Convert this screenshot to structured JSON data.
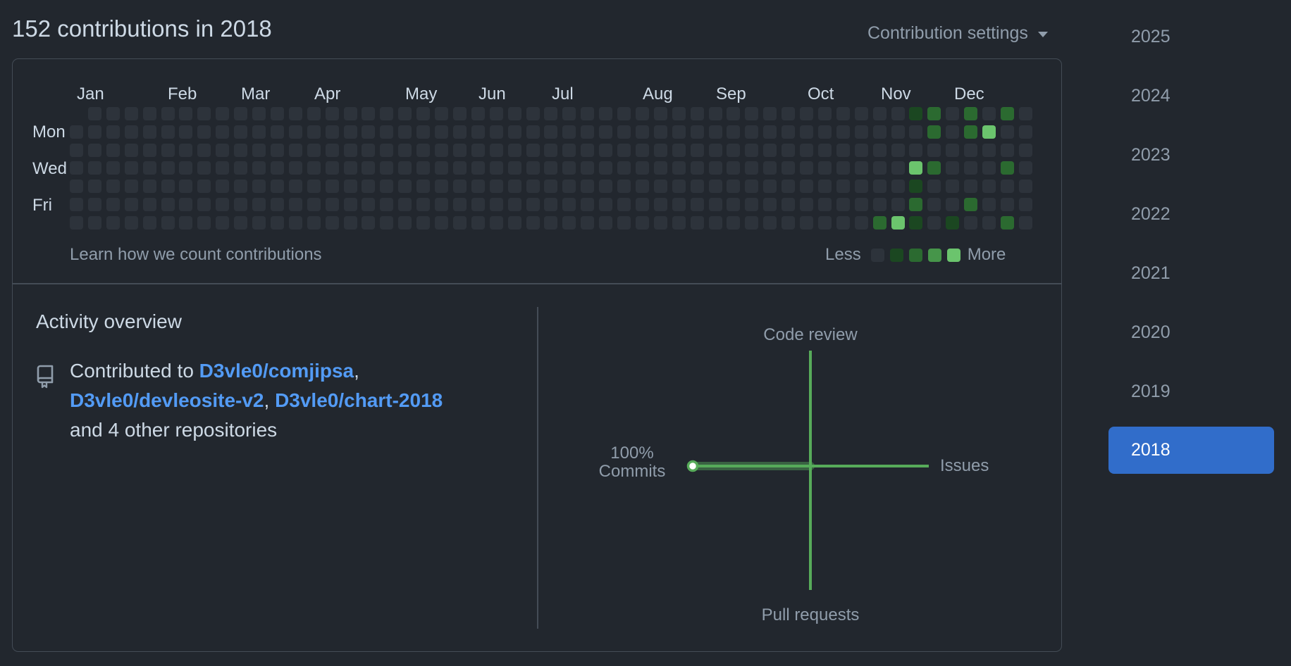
{
  "header": {
    "title": "152 contributions in 2018",
    "settings_label": "Contribution settings"
  },
  "calendar": {
    "months": [
      "Jan",
      "Feb",
      "Mar",
      "Apr",
      "May",
      "Jun",
      "Jul",
      "Aug",
      "Sep",
      "Oct",
      "Nov",
      "Dec"
    ],
    "days": [
      "Mon",
      "Wed",
      "Fri"
    ],
    "weeks": 53,
    "active_cells": [
      {
        "week": 46,
        "day": 0,
        "level": 1
      },
      {
        "week": 47,
        "day": 0,
        "level": 2
      },
      {
        "week": 49,
        "day": 0,
        "level": 2
      },
      {
        "week": 51,
        "day": 0,
        "level": 2
      },
      {
        "week": 47,
        "day": 1,
        "level": 2
      },
      {
        "week": 49,
        "day": 1,
        "level": 2
      },
      {
        "week": 50,
        "day": 1,
        "level": 4
      },
      {
        "week": 46,
        "day": 3,
        "level": 4
      },
      {
        "week": 47,
        "day": 3,
        "level": 2
      },
      {
        "week": 51,
        "day": 3,
        "level": 2
      },
      {
        "week": 46,
        "day": 4,
        "level": 1
      },
      {
        "week": 46,
        "day": 5,
        "level": 2
      },
      {
        "week": 49,
        "day": 5,
        "level": 2
      },
      {
        "week": 44,
        "day": 6,
        "level": 2
      },
      {
        "week": 45,
        "day": 6,
        "level": 4
      },
      {
        "week": 46,
        "day": 6,
        "level": 1
      },
      {
        "week": 48,
        "day": 6,
        "level": 1
      },
      {
        "week": 51,
        "day": 6,
        "level": 2
      }
    ],
    "learn_link": "Learn how we count contributions",
    "legend_less": "Less",
    "legend_more": "More",
    "level_colors": [
      "#2d333b",
      "#1b4721",
      "#2b6a30",
      "#46954a",
      "#6bc46d"
    ]
  },
  "overview": {
    "title": "Activity overview",
    "prefix": "Contributed to ",
    "repos": [
      "D3vle0/comjipsa",
      "D3vle0/devleosite-v2",
      "D3vle0/chart-2018"
    ],
    "suffix": "and 4 other repositories",
    "repo_icon": "repo-icon"
  },
  "activity": {
    "code_review": "Code review",
    "issues": "Issues",
    "pull_requests": "Pull requests",
    "commits_pct": "100%",
    "commits_label": "Commits",
    "accent": "#57ab5a"
  },
  "years": [
    "2025",
    "2024",
    "2023",
    "2022",
    "2021",
    "2020",
    "2019",
    "2018"
  ],
  "selected_year": "2018"
}
